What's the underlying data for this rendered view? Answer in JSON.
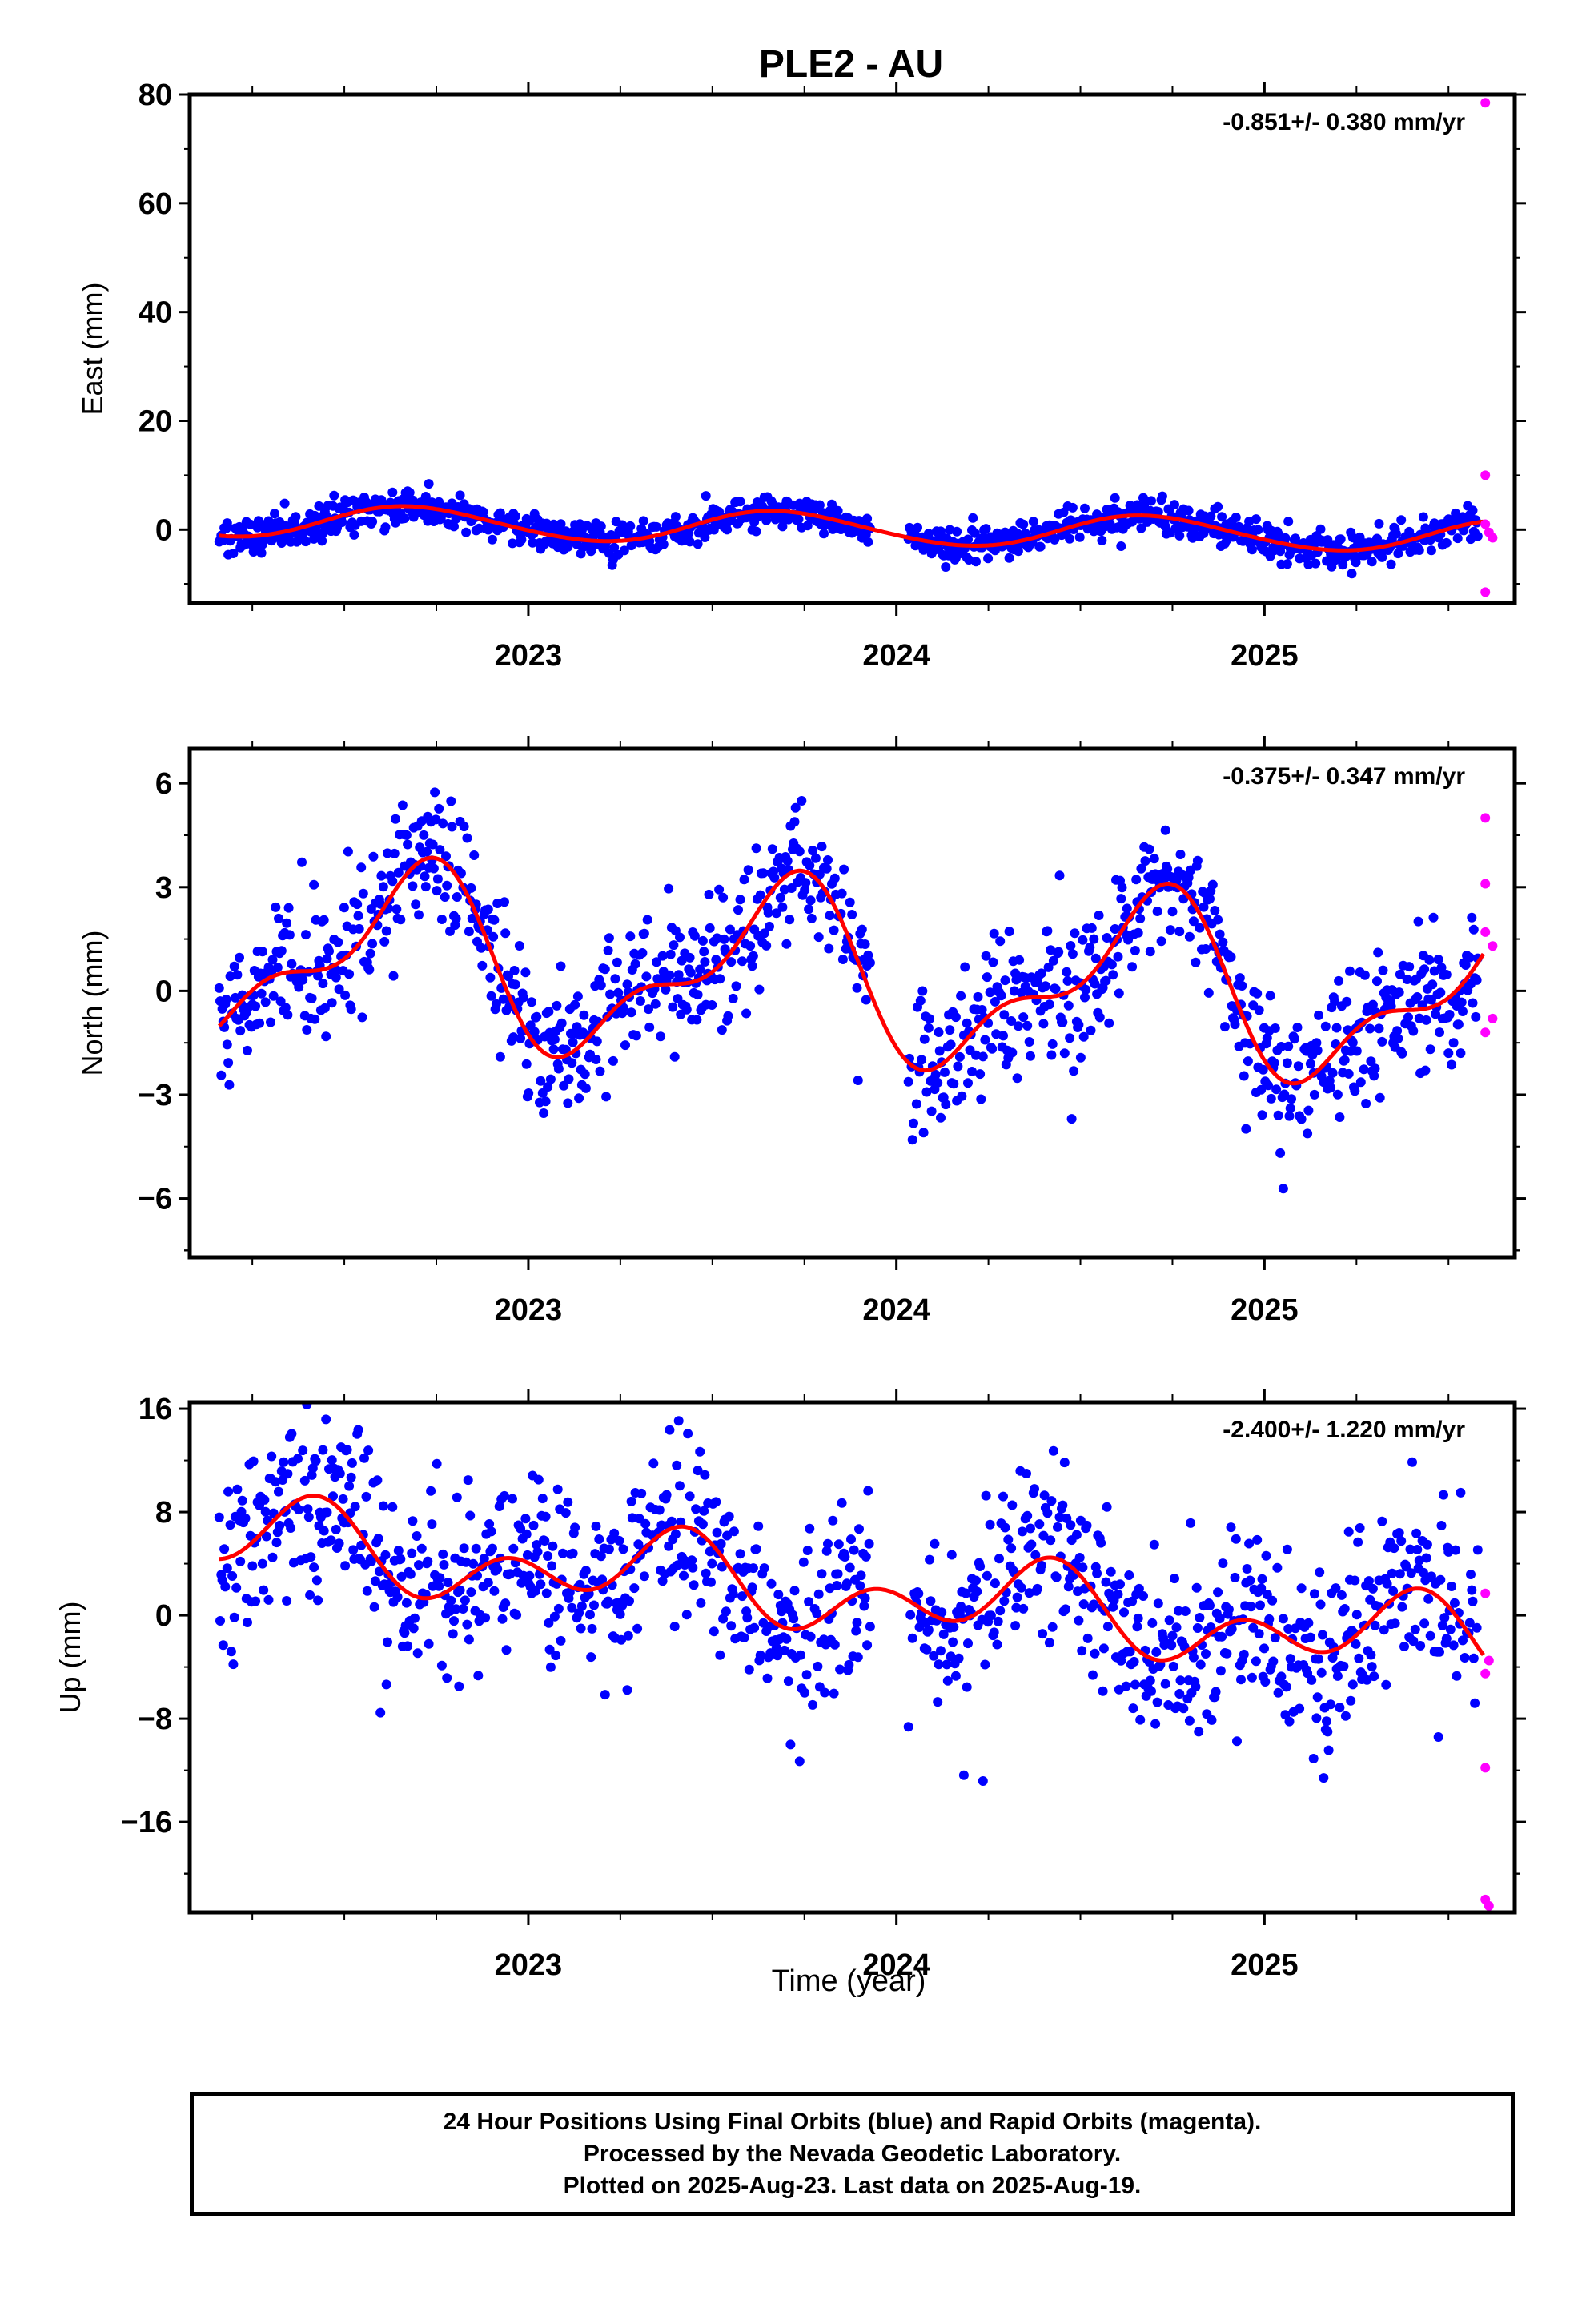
{
  "title": "PLE2 - AU",
  "xlabel": "Time (year)",
  "colors": {
    "final": "#0000ff",
    "rapid": "#ff00ff",
    "fit": "#ff0000",
    "axis": "#000000"
  },
  "footer": {
    "line1": "24 Hour Positions Using Final Orbits (blue) and Rapid Orbits (magenta).",
    "line2": "Processed by the Nevada Geodetic Laboratory.",
    "line3": "Plotted on 2025-Aug-23. Last data on 2025-Aug-19."
  },
  "chart_data": [
    {
      "type": "scatter",
      "component": "east",
      "ylabel": "East (mm)",
      "rate": "-0.851+/- 0.380 mm/yr",
      "xlim": [
        2022.08,
        2025.68
      ],
      "ylim": [
        -13.5,
        80
      ],
      "yticks": [
        0,
        20,
        40,
        60,
        80
      ],
      "xticks": [
        2023,
        2024,
        2025
      ],
      "trend": {
        "offset": 0.2,
        "rate": -0.851,
        "x0": 2023.9,
        "annual": [
          -2.7,
          -1.2
        ],
        "semiannual": [
          0.2,
          0.1
        ]
      },
      "noise": 1.6,
      "rapid": [
        [
          2025.6,
          78.5
        ],
        [
          2025.6,
          10.0
        ],
        [
          2025.6,
          1.0
        ],
        [
          2025.61,
          -0.5
        ],
        [
          2025.62,
          -1.5
        ],
        [
          2025.6,
          -11.5
        ]
      ]
    },
    {
      "type": "scatter",
      "component": "north",
      "ylabel": "North (mm)",
      "rate": "-0.375+/- 0.347 mm/yr",
      "xlim": [
        2022.08,
        2025.68
      ],
      "ylim": [
        -7.7,
        7.0
      ],
      "yticks": [
        -6,
        -3,
        0,
        3,
        6
      ],
      "xticks": [
        2023,
        2024,
        2025
      ],
      "trend": {
        "offset": 0.4,
        "rate": -0.375,
        "x0": 2023.9,
        "annual": [
          -2.0,
          -1.0
        ],
        "semiannual": [
          -0.3,
          -1.0
        ]
      },
      "noise": 1.0,
      "rapid": [
        [
          2025.6,
          5.0
        ],
        [
          2025.6,
          3.1
        ],
        [
          2025.6,
          1.7
        ],
        [
          2025.62,
          1.3
        ],
        [
          2025.62,
          -0.8
        ],
        [
          2025.6,
          -1.2
        ]
      ]
    },
    {
      "type": "scatter",
      "component": "up",
      "ylabel": "Up (mm)",
      "rate": "-2.400+/- 1.220 mm/yr",
      "xlim": [
        2022.08,
        2025.68
      ],
      "ylim": [
        -23,
        16.5
      ],
      "yticks": [
        -16,
        -8,
        0,
        8,
        16
      ],
      "xticks": [
        2023,
        2024,
        2025
      ],
      "trend": {
        "offset": 1.7,
        "rate": -2.4,
        "x0": 2023.9,
        "annual": [
          1.5,
          -1.3
        ],
        "semiannual": [
          -1.6,
          1.5
        ]
      },
      "noise": 3.5,
      "rapid": [
        [
          2025.6,
          1.7
        ],
        [
          2025.61,
          -3.5
        ],
        [
          2025.6,
          -4.5
        ],
        [
          2025.6,
          -11.8
        ],
        [
          2025.6,
          -22.0
        ],
        [
          2025.61,
          -22.5
        ]
      ]
    }
  ]
}
